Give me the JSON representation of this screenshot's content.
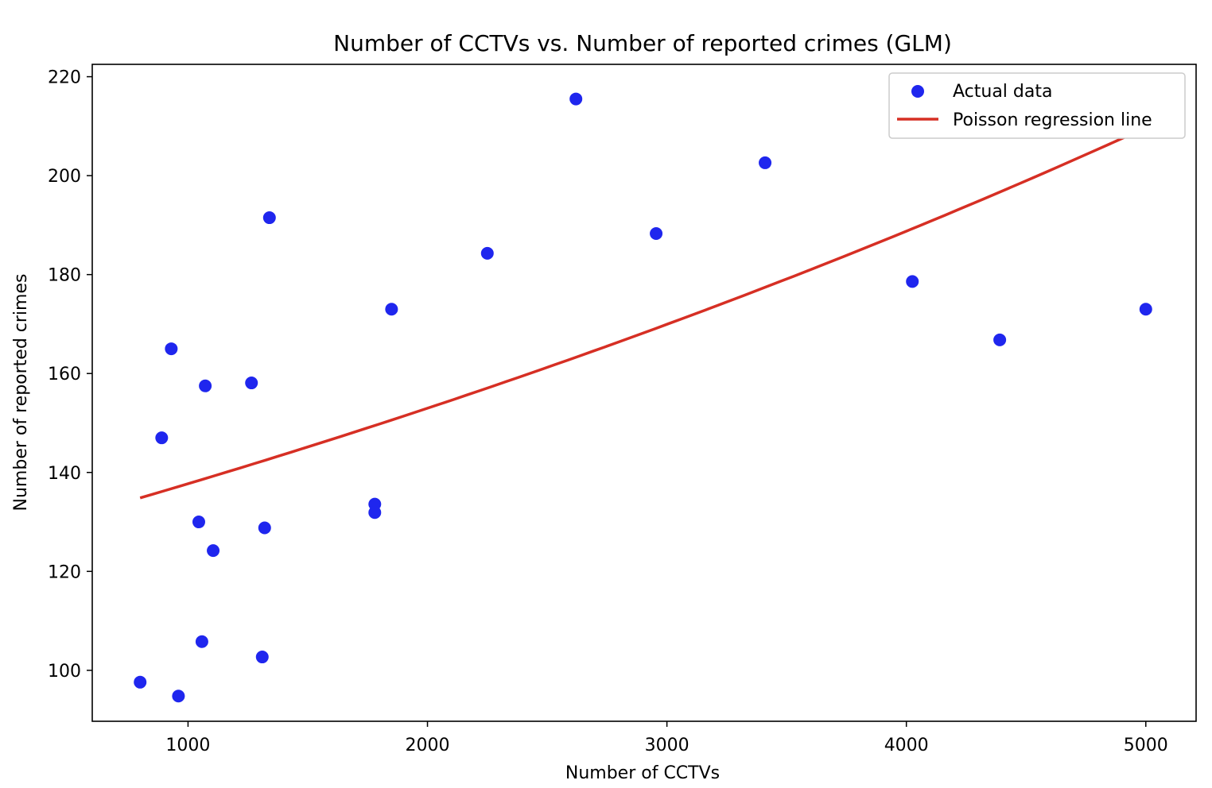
{
  "chart_data": {
    "type": "scatter",
    "title": "Number of CCTVs vs. Number of reported crimes (GLM)",
    "xlabel": "Number of CCTVs",
    "ylabel": "Number of reported crimes",
    "xlim": [
      600,
      5210
    ],
    "ylim": [
      89.7,
      222.5
    ],
    "xticks": [
      1000,
      2000,
      3000,
      4000,
      5000
    ],
    "yticks": [
      100,
      120,
      140,
      160,
      180,
      200,
      220
    ],
    "grid": false,
    "legend_position": "top-right",
    "series": [
      {
        "name": "Actual data",
        "kind": "scatter",
        "color": "#1f26ee",
        "points": [
          {
            "x": 800,
            "y": 97.6
          },
          {
            "x": 890,
            "y": 147
          },
          {
            "x": 930,
            "y": 165
          },
          {
            "x": 960,
            "y": 94.8
          },
          {
            "x": 1045,
            "y": 130
          },
          {
            "x": 1058,
            "y": 105.8
          },
          {
            "x": 1072,
            "y": 157.5
          },
          {
            "x": 1105,
            "y": 124.2
          },
          {
            "x": 1265,
            "y": 158.1
          },
          {
            "x": 1310,
            "y": 102.7
          },
          {
            "x": 1320,
            "y": 128.8
          },
          {
            "x": 1340,
            "y": 191.5
          },
          {
            "x": 1780,
            "y": 133.6
          },
          {
            "x": 1780,
            "y": 131.9
          },
          {
            "x": 1850,
            "y": 173
          },
          {
            "x": 2250,
            "y": 184.3
          },
          {
            "x": 2620,
            "y": 215.5
          },
          {
            "x": 2955,
            "y": 188.3
          },
          {
            "x": 3410,
            "y": 202.6
          },
          {
            "x": 4025,
            "y": 178.6
          },
          {
            "x": 4390,
            "y": 166.8
          },
          {
            "x": 5000,
            "y": 173
          }
        ]
      },
      {
        "name": "Poisson regression line",
        "kind": "line",
        "color": "#d62f24",
        "model": {
          "intercept": 4.8201,
          "slope": 0.00010512
        },
        "x_range": [
          800,
          5000
        ]
      }
    ]
  }
}
